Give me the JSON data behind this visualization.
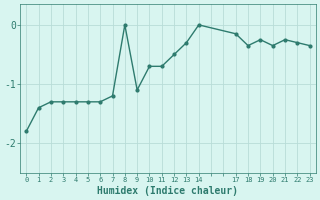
{
  "x": [
    0,
    1,
    2,
    3,
    4,
    5,
    6,
    7,
    8,
    9,
    10,
    11,
    12,
    13,
    14,
    17,
    18,
    19,
    20,
    21,
    22,
    23
  ],
  "y": [
    -1.8,
    -1.4,
    -1.3,
    -1.3,
    -1.3,
    -1.3,
    -1.3,
    -1.2,
    0.0,
    -1.1,
    -0.7,
    -0.7,
    -0.5,
    -0.3,
    0.0,
    -0.15,
    -0.35,
    -0.25,
    -0.35,
    -0.25,
    -0.3,
    -0.35
  ],
  "all_xtick_positions": [
    0,
    1,
    2,
    3,
    4,
    5,
    6,
    7,
    8,
    9,
    10,
    11,
    12,
    13,
    14,
    15,
    16,
    17,
    18,
    19,
    20,
    21,
    22,
    23
  ],
  "labeled_xtick_positions": [
    0,
    1,
    2,
    3,
    4,
    5,
    6,
    7,
    8,
    9,
    10,
    11,
    12,
    13,
    14,
    17,
    18,
    19,
    20,
    21,
    22,
    23
  ],
  "labeled_xtick_labels": [
    "0",
    "1",
    "2",
    "3",
    "4",
    "5",
    "6",
    "7",
    "8",
    "9",
    "10",
    "11",
    "12",
    "13",
    "14",
    "17",
    "18",
    "19",
    "20",
    "21",
    "22",
    "23"
  ],
  "line_color": "#2e7b6e",
  "marker": "o",
  "marker_size": 2.0,
  "linewidth": 1.0,
  "bg_color": "#d8f5f0",
  "grid_color": "#b8ddd8",
  "tick_color": "#2e7b6e",
  "xlabel": "Humidex (Indice chaleur)",
  "xlabel_fontsize": 7,
  "ytick_labels": [
    "0",
    "-1",
    "-2"
  ],
  "ytick_values": [
    0,
    -1,
    -2
  ],
  "xlim": [
    -0.5,
    23.5
  ],
  "ylim": [
    -2.5,
    0.35
  ]
}
